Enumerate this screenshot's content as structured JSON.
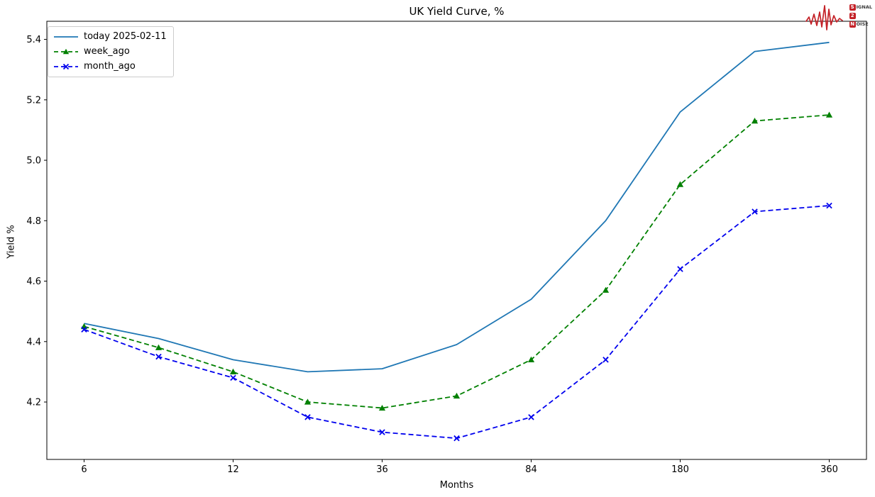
{
  "title": "UK Yield Curve, %",
  "chart_data": {
    "type": "line",
    "title": "UK Yield Curve, %",
    "xlabel": "Months",
    "ylabel": "Yield %",
    "x_months": [
      6,
      9,
      12,
      24,
      36,
      60,
      84,
      120,
      180,
      240,
      360
    ],
    "x_spacing": "uniform-per-tenor",
    "x_tick_indices": [
      0,
      2,
      4,
      6,
      8,
      10
    ],
    "x_tick_labels": [
      "6",
      "12",
      "36",
      "84",
      "180",
      "360"
    ],
    "yticks": [
      4.2,
      4.4,
      4.6,
      4.8,
      5.0,
      5.2,
      5.4
    ],
    "ylim": [
      4.01,
      5.46
    ],
    "grid": false,
    "legend_position": "upper-left",
    "series": [
      {
        "name": "today 2025-02-11",
        "color": "#1f77b4",
        "style": "solid",
        "marker": "none",
        "values": [
          4.46,
          4.41,
          4.34,
          4.3,
          4.31,
          4.39,
          4.54,
          4.8,
          5.16,
          5.36,
          5.39
        ]
      },
      {
        "name": "week_ago",
        "color": "#008000",
        "style": "dashed",
        "marker": "triangle",
        "values": [
          4.45,
          4.38,
          4.3,
          4.2,
          4.18,
          4.22,
          4.34,
          4.57,
          4.92,
          5.13,
          5.15
        ]
      },
      {
        "name": "month_ago",
        "color": "#0000ee",
        "style": "dashed",
        "marker": "x",
        "values": [
          4.44,
          4.35,
          4.28,
          4.15,
          4.1,
          4.08,
          4.15,
          4.34,
          4.64,
          4.83,
          4.85
        ]
      }
    ]
  },
  "logo": {
    "rows": [
      {
        "initial": "S",
        "rest": "IGNAL"
      },
      {
        "initial": "2",
        "rest": ""
      },
      {
        "initial": "N",
        "rest": "OISE"
      }
    ],
    "accent_red": "#c42127"
  },
  "colors": {
    "axis": "#000000",
    "tick_text": "#000000",
    "legend_border": "#cccccc",
    "background": "#ffffff"
  }
}
